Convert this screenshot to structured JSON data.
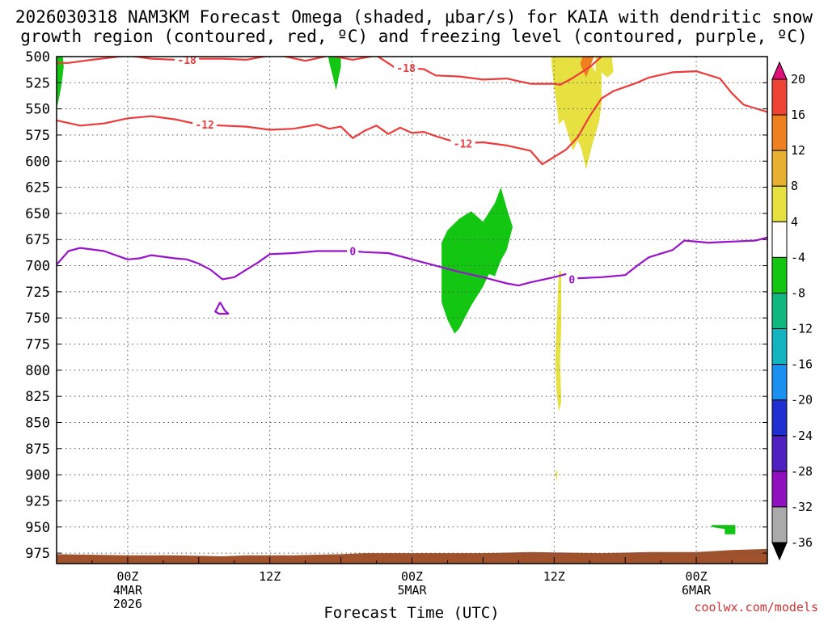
{
  "chart_data": {
    "type": "time-height",
    "title_line1": "2026030318 NAM3KM Forecast Omega (shaded, μbar/s) for KAIA with dendritic snow",
    "title_line2": "growth region (contoured, red, ºC) and freezing level (contoured, purple, ºC)",
    "xlabel": "Forecast Time (UTC)",
    "ylabel": "",
    "credit": "coolwx.com/models",
    "x_unit": "hours after 2026-03-03 18Z",
    "xlim": [
      0,
      60
    ],
    "ylim": [
      500,
      985
    ],
    "y_inverted": true,
    "grid": true,
    "pressure_ticks": [
      500,
      525,
      550,
      575,
      600,
      625,
      650,
      675,
      700,
      725,
      750,
      775,
      800,
      825,
      850,
      875,
      900,
      925,
      950,
      975
    ],
    "x_ticks": [
      {
        "x": 6,
        "lines": [
          "00Z",
          "4MAR",
          "2026"
        ]
      },
      {
        "x": 18,
        "lines": [
          "12Z"
        ]
      },
      {
        "x": 30,
        "lines": [
          "00Z",
          "5MAR"
        ]
      },
      {
        "x": 42,
        "lines": [
          "12Z"
        ]
      },
      {
        "x": 54,
        "lines": [
          "00Z",
          "6MAR"
        ]
      }
    ],
    "colorbar": {
      "labels": [
        "20",
        "16",
        "12",
        "8",
        "4",
        "-4",
        "-8",
        "-12",
        "-16",
        "-20",
        "-24",
        "-28",
        "-32",
        "-36"
      ],
      "bins": [
        {
          "color": "#e0107a"
        },
        {
          "color": "#ee4436"
        },
        {
          "color": "#ee8020"
        },
        {
          "color": "#e8b030"
        },
        {
          "color": "#e6e040"
        },
        {
          "color": "#ffffff"
        },
        {
          "color": "#12c612"
        },
        {
          "color": "#10b880"
        },
        {
          "color": "#12b4c0"
        },
        {
          "color": "#1a90f0"
        },
        {
          "color": "#2030d0"
        },
        {
          "color": "#5020c0"
        },
        {
          "color": "#9010c0"
        },
        {
          "color": "#aaaaaa"
        },
        {
          "color": "#000000"
        }
      ]
    },
    "contours": [
      {
        "name": "-18",
        "color": "#ee3a3a",
        "label": "-18",
        "label_at": [
          [
            11,
            503
          ],
          [
            29.5,
            511
          ]
        ],
        "points": [
          [
            0,
            506
          ],
          [
            1,
            506
          ],
          [
            3,
            503
          ],
          [
            6,
            499
          ],
          [
            8,
            502
          ],
          [
            10,
            503
          ],
          [
            12,
            502
          ],
          [
            14,
            502
          ],
          [
            16,
            503
          ],
          [
            18.5,
            498
          ],
          [
            21,
            504
          ],
          [
            23,
            499
          ],
          [
            25,
            503
          ],
          [
            27,
            499
          ],
          [
            28.5,
            510
          ],
          [
            29.5,
            511
          ],
          [
            31,
            512
          ],
          [
            32,
            518
          ],
          [
            34,
            519
          ],
          [
            36,
            522
          ],
          [
            38,
            521
          ],
          [
            40,
            526
          ],
          [
            42,
            526
          ],
          [
            42.5,
            527
          ],
          [
            43.5,
            521
          ],
          [
            45,
            510
          ],
          [
            46.5,
            495
          ],
          [
            47,
            490
          ]
        ]
      },
      {
        "name": "-12",
        "color": "#ee3a3a",
        "label": "-12",
        "label_at": [
          [
            12.5,
            565
          ],
          [
            34.3,
            583
          ]
        ],
        "points": [
          [
            0,
            561
          ],
          [
            2,
            566
          ],
          [
            4,
            564
          ],
          [
            6,
            559
          ],
          [
            8,
            557
          ],
          [
            10,
            560
          ],
          [
            12,
            565
          ],
          [
            14,
            566
          ],
          [
            16,
            567
          ],
          [
            18,
            570
          ],
          [
            20,
            569
          ],
          [
            22,
            565
          ],
          [
            23,
            569
          ],
          [
            24,
            567
          ],
          [
            25,
            578
          ],
          [
            26,
            571
          ],
          [
            27,
            566
          ],
          [
            28,
            574
          ],
          [
            29,
            568
          ],
          [
            30,
            573
          ],
          [
            31,
            572
          ],
          [
            32,
            576
          ],
          [
            34,
            583
          ],
          [
            36,
            582
          ],
          [
            38,
            585
          ],
          [
            40,
            590
          ],
          [
            41,
            603
          ],
          [
            42,
            596
          ],
          [
            43,
            589
          ],
          [
            44,
            577
          ],
          [
            45,
            557
          ],
          [
            46,
            540
          ],
          [
            47,
            533
          ],
          [
            49,
            525
          ],
          [
            50,
            520
          ],
          [
            52,
            515
          ],
          [
            54,
            514
          ],
          [
            56,
            521
          ],
          [
            57,
            535
          ],
          [
            58,
            546
          ],
          [
            60,
            553
          ]
        ]
      },
      {
        "name": "0",
        "color": "#9912cc",
        "label": "0",
        "label_at": [
          [
            25,
            686
          ],
          [
            43.5,
            713
          ]
        ],
        "points": [
          [
            0,
            699
          ],
          [
            1,
            686
          ],
          [
            2,
            683
          ],
          [
            4,
            686
          ],
          [
            6,
            694
          ],
          [
            7,
            693
          ],
          [
            8,
            690
          ],
          [
            10,
            693
          ],
          [
            11,
            694
          ],
          [
            12,
            698
          ],
          [
            13,
            704
          ],
          [
            14,
            713
          ],
          [
            15,
            711
          ],
          [
            16,
            704
          ],
          [
            17,
            697
          ],
          [
            18,
            689
          ],
          [
            20,
            688
          ],
          [
            22,
            686
          ],
          [
            24,
            686
          ],
          [
            25,
            686
          ],
          [
            26,
            687
          ],
          [
            28,
            688
          ],
          [
            30,
            694
          ],
          [
            32,
            700
          ],
          [
            34,
            706
          ],
          [
            36,
            711
          ],
          [
            38,
            717
          ],
          [
            39,
            719
          ],
          [
            40,
            716
          ],
          [
            42,
            711
          ],
          [
            43,
            708
          ],
          [
            44,
            712
          ],
          [
            46,
            711
          ],
          [
            48,
            709
          ],
          [
            49,
            700
          ],
          [
            50,
            692
          ],
          [
            52,
            685
          ],
          [
            53,
            676
          ],
          [
            55,
            678
          ],
          [
            57,
            677
          ],
          [
            59,
            676
          ],
          [
            60,
            673
          ]
        ]
      },
      {
        "name": "0-loop",
        "color": "#9912cc",
        "label": "",
        "label_at": [],
        "points": [
          [
            13.8,
            735
          ],
          [
            14.2,
            743
          ],
          [
            14.5,
            746
          ],
          [
            13.7,
            746
          ],
          [
            13.4,
            744
          ],
          [
            13.8,
            735
          ]
        ]
      }
    ],
    "shaded_regions": [
      {
        "color": "#12c612",
        "points": [
          [
            0,
            495
          ],
          [
            0.5,
            495
          ],
          [
            0.6,
            510
          ],
          [
            0.4,
            528
          ],
          [
            0.2,
            540
          ],
          [
            0,
            550
          ]
        ]
      },
      {
        "color": "#12c612",
        "points": [
          [
            22.8,
            490
          ],
          [
            24,
            490
          ],
          [
            24,
            510
          ],
          [
            23.8,
            520
          ],
          [
            23.6,
            532
          ],
          [
            23.3,
            518
          ],
          [
            23,
            505
          ]
        ]
      },
      {
        "color": "#12c612",
        "points": [
          [
            32.5,
            690
          ],
          [
            32.5,
            678
          ],
          [
            33,
            666
          ],
          [
            34,
            655
          ],
          [
            35,
            648
          ],
          [
            36,
            658
          ],
          [
            37,
            640
          ],
          [
            37.5,
            625
          ],
          [
            38,
            645
          ],
          [
            38.5,
            663
          ],
          [
            38,
            685
          ],
          [
            37.5,
            695
          ],
          [
            37,
            710
          ],
          [
            36.5,
            708
          ],
          [
            36,
            720
          ],
          [
            35,
            738
          ],
          [
            34,
            760
          ],
          [
            33.6,
            765
          ],
          [
            33,
            752
          ],
          [
            32.5,
            735
          ]
        ]
      },
      {
        "color": "#e6e040",
        "points": [
          [
            41.7,
            490
          ],
          [
            44,
            490
          ],
          [
            45,
            505
          ],
          [
            45.5,
            515
          ],
          [
            45.5,
            490
          ],
          [
            46.8,
            490
          ],
          [
            47,
            515
          ],
          [
            46.5,
            520
          ],
          [
            46,
            515
          ],
          [
            46,
            545
          ],
          [
            45.8,
            562
          ],
          [
            45.2,
            585
          ],
          [
            44.7,
            608
          ],
          [
            44.3,
            588
          ],
          [
            44,
            580
          ],
          [
            43.6,
            590
          ],
          [
            43.2,
            575
          ],
          [
            42.8,
            560
          ],
          [
            42.4,
            565
          ],
          [
            42.2,
            545
          ],
          [
            42,
            530
          ],
          [
            41.8,
            510
          ]
        ]
      },
      {
        "color": "#e6e040",
        "points": [
          [
            42.4,
            705
          ],
          [
            42.6,
            705
          ],
          [
            42.6,
            760
          ],
          [
            42.5,
            790
          ],
          [
            42.6,
            830
          ],
          [
            42.4,
            840
          ],
          [
            42.2,
            820
          ],
          [
            42.1,
            790
          ],
          [
            42.2,
            760
          ],
          [
            42.3,
            730
          ]
        ]
      },
      {
        "color": "#e6e040",
        "points": [
          [
            42.1,
            897
          ],
          [
            42.3,
            897
          ],
          [
            42.2,
            907
          ]
        ]
      },
      {
        "color": "#ee8020",
        "points": [
          [
            44.2,
            507
          ],
          [
            44.7,
            490
          ],
          [
            45.7,
            490
          ],
          [
            45.2,
            505
          ],
          [
            44.7,
            520
          ]
        ]
      },
      {
        "color": "#12c612",
        "points": [
          [
            55.3,
            948
          ],
          [
            57.3,
            948
          ],
          [
            57.3,
            957
          ],
          [
            56.4,
            957
          ],
          [
            56.4,
            952
          ],
          [
            55.3,
            950
          ]
        ]
      }
    ],
    "terrain": {
      "color": "#a0522d",
      "points": [
        [
          0,
          976
        ],
        [
          6,
          977
        ],
        [
          10,
          977
        ],
        [
          14,
          978
        ],
        [
          16,
          977
        ],
        [
          20,
          977
        ],
        [
          24,
          976
        ],
        [
          26,
          975
        ],
        [
          30,
          975
        ],
        [
          36,
          975
        ],
        [
          40,
          974
        ],
        [
          46,
          975
        ],
        [
          50,
          974
        ],
        [
          54,
          974
        ],
        [
          57,
          972
        ],
        [
          60,
          971
        ]
      ]
    }
  }
}
